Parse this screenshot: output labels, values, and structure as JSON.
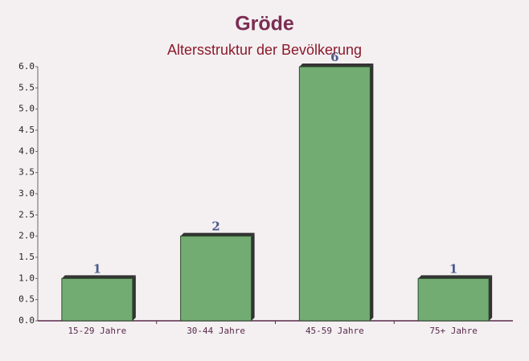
{
  "chart_data": {
    "type": "bar",
    "title": "Gröde",
    "subtitle": "Altersstruktur der Bevölkerung",
    "categories": [
      "15-29 Jahre",
      "30-44 Jahre",
      "45-59 Jahre",
      "75+ Jahre"
    ],
    "values": [
      1,
      2,
      6,
      1
    ],
    "color": "#6aa86a",
    "ylim": [
      0,
      6
    ],
    "yticks": [
      {
        "value": 0,
        "label": "0.0"
      },
      0.5,
      {
        "value": 1,
        "label": "1.0"
      },
      1.5,
      {
        "value": 2,
        "label": "2.0"
      },
      2.5,
      {
        "value": 3,
        "label": "3.0"
      },
      3.5,
      {
        "value": 4,
        "label": "4.0"
      },
      4.5,
      {
        "value": 5,
        "label": "5.0"
      },
      5.5,
      {
        "value": 6,
        "label": "6.0"
      }
    ],
    "grid": false
  }
}
